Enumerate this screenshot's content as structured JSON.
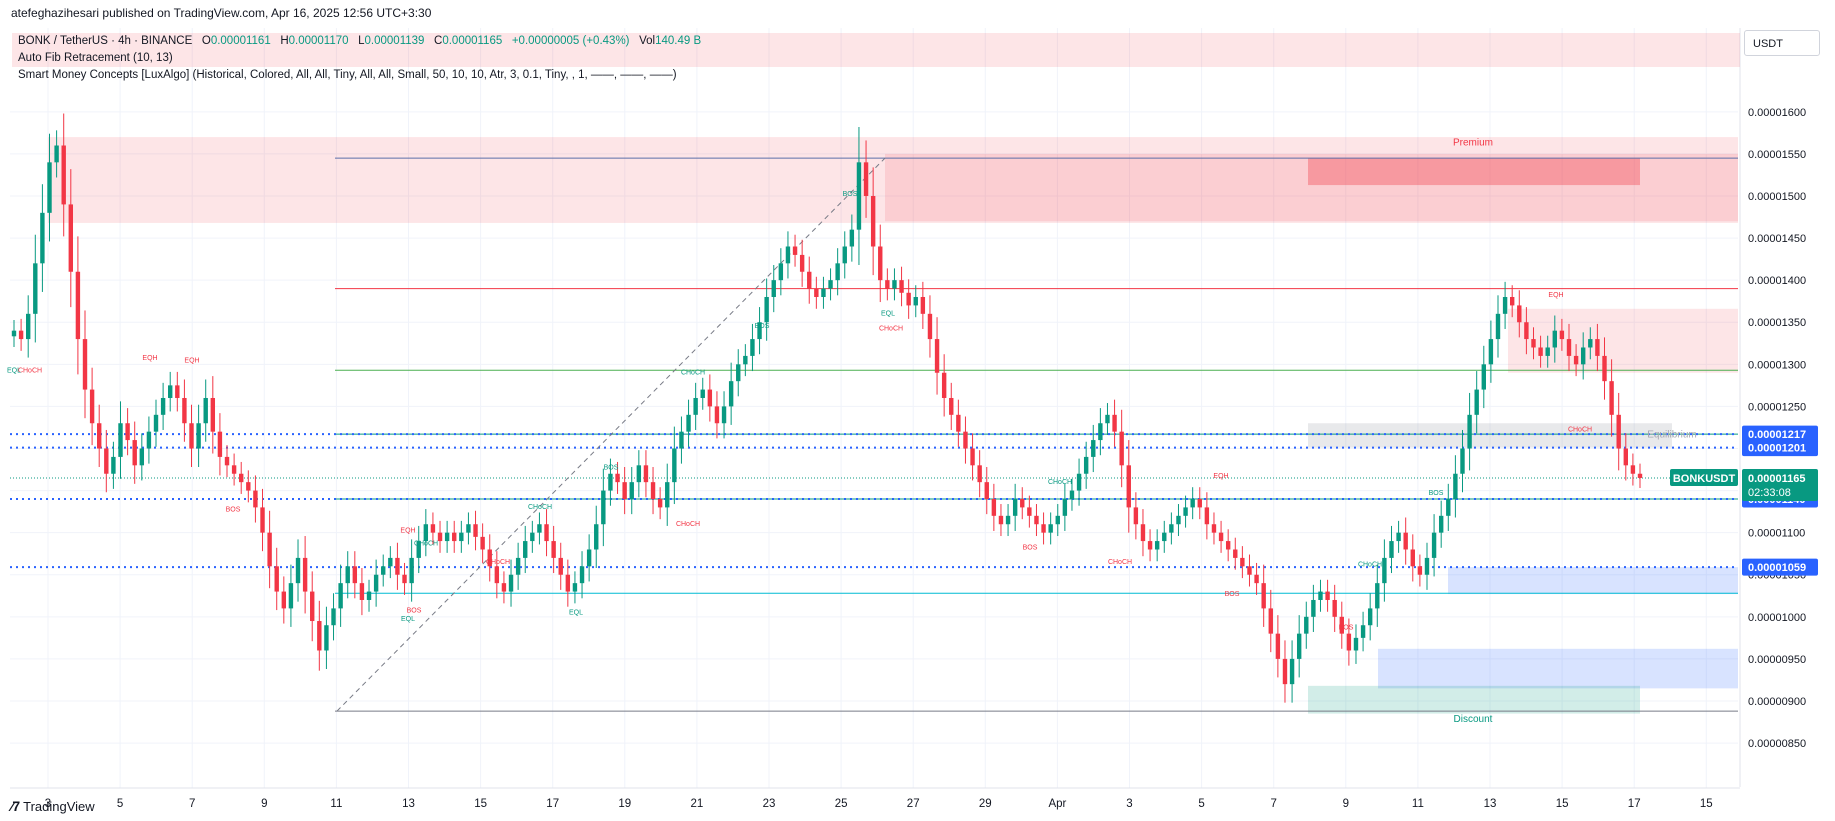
{
  "header": {
    "published_text": "atefeghazihesari published on TradingView.com, Apr 16, 2025 12:56 UTC+3:30"
  },
  "legend": {
    "symbol": "BONK / TetherUS · 4h · BINANCE",
    "open_label": "O",
    "open": "0.00001161",
    "high_label": "H",
    "high": "0.00001170",
    "low_label": "L",
    "low": "0.00001139",
    "close_label": "C",
    "close": "0.00001165",
    "change": "+0.00000005 (+0.43%)",
    "volume_label": "Vol",
    "volume": "140.49 B",
    "indicator_1": "Auto Fib Retracement (10, 13)",
    "indicator_2": "Smart Money Concepts [LuxAlgo] (Historical, Colored, All, All, Tiny, All, All, Small, 50, 10, 10, Atr, 3, 0.1, Tiny, , 1, ——, ——, ——)"
  },
  "currency_label": "USDT",
  "footer": {
    "logo_text": "TradingView"
  },
  "colors": {
    "up": "#089981",
    "down": "#f23645",
    "blue_label": "#2962ff",
    "grid": "#f0f3fa"
  },
  "chart_data": {
    "type": "candlestick",
    "ylim": [
      8.275e-06,
      1.62e-05
    ],
    "y_ticks": [
      "0.00001600",
      "0.00001550",
      "0.00001500",
      "0.00001450",
      "0.00001400",
      "0.00001350",
      "0.00001300",
      "0.00001250",
      "0.00001200",
      "0.00001150",
      "0.00001100",
      "0.00001050",
      "0.00001000",
      "0.00000950",
      "0.00000900",
      "0.00000850"
    ],
    "x_ticks": [
      "3",
      "5",
      "7",
      "9",
      "11",
      "13",
      "15",
      "17",
      "19",
      "21",
      "23",
      "25",
      "27",
      "29",
      "Apr",
      "3",
      "5",
      "7",
      "9",
      "11",
      "13",
      "15",
      "17",
      "15"
    ],
    "price_labels": [
      {
        "value": 1.217e-05,
        "text": "0.00001217",
        "color": "#2962ff"
      },
      {
        "value": 1.201e-05,
        "text": "0.00001201",
        "color": "#2962ff"
      },
      {
        "value": 1.14e-05,
        "text": "0.00001140",
        "color": "#2962ff"
      },
      {
        "value": 1.059e-05,
        "text": "0.00001059",
        "color": "#2962ff"
      }
    ],
    "current": {
      "symbol": "BONKUSDT",
      "value": 1.165e-05,
      "text": "0.00001165",
      "countdown": "02:33:08"
    },
    "annotations": [
      "Premium",
      "Discount",
      "Equilibrium",
      "BOS",
      "CHoCH",
      "EQH",
      "EQL"
    ],
    "closes": [
      1.34e-05,
      1.33e-05,
      1.36e-05,
      1.42e-05,
      1.48e-05,
      1.54e-05,
      1.56e-05,
      1.49e-05,
      1.41e-05,
      1.33e-05,
      1.27e-05,
      1.23e-05,
      1.2e-05,
      1.17e-05,
      1.19e-05,
      1.23e-05,
      1.21e-05,
      1.18e-05,
      1.2e-05,
      1.22e-05,
      1.24e-05,
      1.26e-05,
      1.275e-05,
      1.26e-05,
      1.23e-05,
      1.2e-05,
      1.23e-05,
      1.26e-05,
      1.22e-05,
      1.19e-05,
      1.18e-05,
      1.17e-05,
      1.16e-05,
      1.15e-05,
      1.13e-05,
      1.1e-05,
      1.06e-05,
      1.03e-05,
      1.01e-05,
      1.04e-05,
      1.07e-05,
      1.03e-05,
      9.95e-06,
      9.6e-06,
      9.9e-06,
      1.01e-05,
      1.04e-05,
      1.06e-05,
      1.04e-05,
      1.02e-05,
      1.03e-05,
      1.05e-05,
      1.06e-05,
      1.07e-05,
      1.05e-05,
      1.04e-05,
      1.07e-05,
      1.09e-05,
      1.11e-05,
      1.1e-05,
      1.09e-05,
      1.1e-05,
      1.09e-05,
      1.1e-05,
      1.11e-05,
      1.095e-05,
      1.08e-05,
      1.06e-05,
      1.04e-05,
      1.03e-05,
      1.05e-05,
      1.07e-05,
      1.09e-05,
      1.1e-05,
      1.11e-05,
      1.09e-05,
      1.07e-05,
      1.05e-05,
      1.03e-05,
      1.04e-05,
      1.06e-05,
      1.08e-05,
      1.11e-05,
      1.15e-05,
      1.17e-05,
      1.16e-05,
      1.14e-05,
      1.16e-05,
      1.18e-05,
      1.16e-05,
      1.14e-05,
      1.13e-05,
      1.16e-05,
      1.2e-05,
      1.22e-05,
      1.24e-05,
      1.26e-05,
      1.27e-05,
      1.25e-05,
      1.23e-05,
      1.25e-05,
      1.28e-05,
      1.3e-05,
      1.31e-05,
      1.33e-05,
      1.35e-05,
      1.38e-05,
      1.4e-05,
      1.42e-05,
      1.44e-05,
      1.43e-05,
      1.41e-05,
      1.39e-05,
      1.38e-05,
      1.39e-05,
      1.4e-05,
      1.42e-05,
      1.44e-05,
      1.46e-05,
      1.54e-05,
      1.5e-05,
      1.44e-05,
      1.4e-05,
      1.39e-05,
      1.4e-05,
      1.385e-05,
      1.37e-05,
      1.38e-05,
      1.36e-05,
      1.33e-05,
      1.29e-05,
      1.26e-05,
      1.24e-05,
      1.22e-05,
      1.2e-05,
      1.18e-05,
      1.16e-05,
      1.14e-05,
      1.12e-05,
      1.11e-05,
      1.12e-05,
      1.14e-05,
      1.13e-05,
      1.12e-05,
      1.11e-05,
      1.1e-05,
      1.11e-05,
      1.12e-05,
      1.14e-05,
      1.15e-05,
      1.17e-05,
      1.19e-05,
      1.21e-05,
      1.23e-05,
      1.24e-05,
      1.22e-05,
      1.18e-05,
      1.13e-05,
      1.11e-05,
      1.09e-05,
      1.08e-05,
      1.09e-05,
      1.1e-05,
      1.11e-05,
      1.12e-05,
      1.13e-05,
      1.14e-05,
      1.13e-05,
      1.11e-05,
      1.1e-05,
      1.09e-05,
      1.08e-05,
      1.07e-05,
      1.06e-05,
      1.05e-05,
      1.04e-05,
      1.01e-05,
      9.8e-06,
      9.5e-06,
      9.2e-06,
      9.5e-06,
      9.8e-06,
      1e-05,
      1.02e-05,
      1.03e-05,
      1.02e-05,
      1e-05,
      9.8e-06,
      9.6e-06,
      9.75e-06,
      9.9e-06,
      1.01e-05,
      1.04e-05,
      1.07e-05,
      1.09e-05,
      1.1e-05,
      1.08e-05,
      1.06e-05,
      1.05e-05,
      1.07e-05,
      1.1e-05,
      1.12e-05,
      1.14e-05,
      1.17e-05,
      1.2e-05,
      1.24e-05,
      1.27e-05,
      1.3e-05,
      1.33e-05,
      1.36e-05,
      1.38e-05,
      1.37e-05,
      1.35e-05,
      1.33e-05,
      1.32e-05,
      1.31e-05,
      1.32e-05,
      1.34e-05,
      1.33e-05,
      1.31e-05,
      1.3e-05,
      1.32e-05,
      1.33e-05,
      1.31e-05,
      1.28e-05,
      1.24e-05,
      1.2e-05,
      1.18e-05,
      1.17e-05,
      1.165e-05
    ]
  }
}
